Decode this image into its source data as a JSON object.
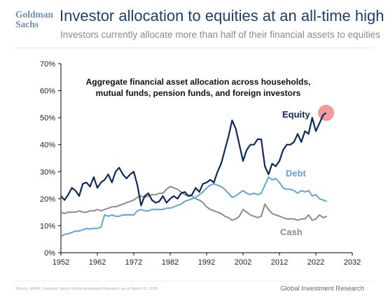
{
  "brand": {
    "line1": "Goldman",
    "line2": "Sachs"
  },
  "header": {
    "title": "Investor allocation to equities at an all-time high",
    "subtitle": "Investors currently allocate more than half of their financial assets to equities"
  },
  "footer": {
    "source": "Source: EPFR, Goldman Sachs Global Investment Research. As of March 13, 2025",
    "right": "Global Investment Research"
  },
  "colors": {
    "equity": "#0d2a5c",
    "debt": "#5fa6d9",
    "cash": "#8c8c8c",
    "highlight": "#f28b8b",
    "axis": "#000000"
  },
  "chart_data": {
    "type": "line",
    "title": "Aggregate financial asset allocation across households, mutual funds, pension funds, and foreign investors",
    "title_lines": [
      "Aggregate financial asset allocation across households,",
      "mutual funds, pension funds, and foreign investors"
    ],
    "xlabel": "",
    "ylabel": "",
    "xlim": [
      1952,
      2032
    ],
    "ylim": [
      0,
      70
    ],
    "x_ticks": [
      1952,
      1962,
      1972,
      1982,
      1992,
      2002,
      2012,
      2022,
      2032
    ],
    "y_ticks": [
      0,
      10,
      20,
      30,
      40,
      50,
      60,
      70
    ],
    "y_tick_labels": [
      "0%",
      "10%",
      "20%",
      "30%",
      "40%",
      "50%",
      "60%",
      "70%"
    ],
    "grid": false,
    "highlight_point": {
      "x": 2024.8,
      "y": 51.8
    },
    "series": [
      {
        "name": "Equity",
        "key": "equity",
        "points": [
          [
            1952,
            21
          ],
          [
            1953,
            19.5
          ],
          [
            1954,
            21.5
          ],
          [
            1955,
            24
          ],
          [
            1956,
            23
          ],
          [
            1957,
            21
          ],
          [
            1958,
            25.5
          ],
          [
            1959,
            26
          ],
          [
            1960,
            24.5
          ],
          [
            1961,
            28
          ],
          [
            1962,
            24
          ],
          [
            1963,
            26
          ],
          [
            1964,
            27
          ],
          [
            1965,
            29
          ],
          [
            1966,
            26
          ],
          [
            1967,
            30
          ],
          [
            1968,
            31.5
          ],
          [
            1969,
            29
          ],
          [
            1970,
            27.5
          ],
          [
            1971,
            29
          ],
          [
            1972,
            30
          ],
          [
            1973,
            25
          ],
          [
            1974,
            17.5
          ],
          [
            1975,
            21
          ],
          [
            1976,
            22
          ],
          [
            1977,
            19.5
          ],
          [
            1978,
            18.5
          ],
          [
            1979,
            19
          ],
          [
            1980,
            21
          ],
          [
            1981,
            18.5
          ],
          [
            1982,
            20
          ],
          [
            1983,
            21
          ],
          [
            1984,
            20
          ],
          [
            1985,
            22
          ],
          [
            1986,
            22.5
          ],
          [
            1987,
            21
          ],
          [
            1988,
            21.5
          ],
          [
            1989,
            24
          ],
          [
            1990,
            22.5
          ],
          [
            1991,
            25.5
          ],
          [
            1992,
            26
          ],
          [
            1993,
            27
          ],
          [
            1994,
            26
          ],
          [
            1995,
            30
          ],
          [
            1996,
            33
          ],
          [
            1997,
            38
          ],
          [
            1998,
            43
          ],
          [
            1999,
            49
          ],
          [
            2000,
            46
          ],
          [
            2001,
            40
          ],
          [
            2002,
            34
          ],
          [
            2003,
            38
          ],
          [
            2004,
            40
          ],
          [
            2005,
            40
          ],
          [
            2006,
            42
          ],
          [
            2007,
            42
          ],
          [
            2008,
            32
          ],
          [
            2009,
            29
          ],
          [
            2010,
            33
          ],
          [
            2011,
            32
          ],
          [
            2012,
            34
          ],
          [
            2013,
            38
          ],
          [
            2014,
            40
          ],
          [
            2015,
            40
          ],
          [
            2016,
            41
          ],
          [
            2017,
            44
          ],
          [
            2018,
            41
          ],
          [
            2019,
            45
          ],
          [
            2020,
            44
          ],
          [
            2021,
            50
          ],
          [
            2022,
            45
          ],
          [
            2023,
            48
          ],
          [
            2024,
            51
          ],
          [
            2024.8,
            51.8
          ]
        ]
      },
      {
        "name": "Debt",
        "key": "debt",
        "points": [
          [
            1952,
            6
          ],
          [
            1953,
            6.8
          ],
          [
            1954,
            7
          ],
          [
            1955,
            7.5
          ],
          [
            1956,
            8
          ],
          [
            1957,
            8
          ],
          [
            1958,
            8.5
          ],
          [
            1959,
            9
          ],
          [
            1960,
            8.8
          ],
          [
            1961,
            9
          ],
          [
            1962,
            9
          ],
          [
            1963,
            9.5
          ],
          [
            1964,
            14
          ],
          [
            1965,
            13.5
          ],
          [
            1966,
            14
          ],
          [
            1967,
            13.5
          ],
          [
            1968,
            13.5
          ],
          [
            1969,
            14
          ],
          [
            1970,
            14
          ],
          [
            1971,
            14
          ],
          [
            1972,
            14
          ],
          [
            1973,
            15.5
          ],
          [
            1974,
            16
          ],
          [
            1975,
            15.5
          ],
          [
            1976,
            15.5
          ],
          [
            1977,
            16
          ],
          [
            1978,
            16
          ],
          [
            1979,
            16
          ],
          [
            1980,
            16
          ],
          [
            1981,
            16.5
          ],
          [
            1982,
            16.5
          ],
          [
            1983,
            17
          ],
          [
            1984,
            17.5
          ],
          [
            1985,
            18
          ],
          [
            1986,
            19
          ],
          [
            1987,
            19.5
          ],
          [
            1988,
            20
          ],
          [
            1989,
            20.5
          ],
          [
            1990,
            21.5
          ],
          [
            1991,
            22.5
          ],
          [
            1992,
            24
          ],
          [
            1993,
            25
          ],
          [
            1994,
            25.5
          ],
          [
            1995,
            25
          ],
          [
            1996,
            24.5
          ],
          [
            1997,
            23.5
          ],
          [
            1998,
            22
          ],
          [
            1999,
            20.5
          ],
          [
            2000,
            21
          ],
          [
            2001,
            22
          ],
          [
            2002,
            23
          ],
          [
            2003,
            22
          ],
          [
            2004,
            21.5
          ],
          [
            2005,
            22
          ],
          [
            2006,
            21.5
          ],
          [
            2007,
            22
          ],
          [
            2008,
            25
          ],
          [
            2009,
            28
          ],
          [
            2010,
            27
          ],
          [
            2011,
            27.5
          ],
          [
            2012,
            26
          ],
          [
            2013,
            24
          ],
          [
            2014,
            23.5
          ],
          [
            2015,
            23.5
          ],
          [
            2016,
            23
          ],
          [
            2017,
            22
          ],
          [
            2018,
            23
          ],
          [
            2019,
            22.5
          ],
          [
            2020,
            23
          ],
          [
            2021,
            21
          ],
          [
            2022,
            21.5
          ],
          [
            2023,
            20
          ],
          [
            2024,
            19.5
          ],
          [
            2025,
            19
          ]
        ]
      },
      {
        "name": "Cash",
        "key": "cash",
        "points": [
          [
            1952,
            15
          ],
          [
            1953,
            14.5
          ],
          [
            1954,
            15
          ],
          [
            1955,
            15
          ],
          [
            1956,
            15
          ],
          [
            1957,
            15.5
          ],
          [
            1958,
            15
          ],
          [
            1959,
            15
          ],
          [
            1960,
            15.5
          ],
          [
            1961,
            15.5
          ],
          [
            1962,
            16
          ],
          [
            1963,
            15.5
          ],
          [
            1964,
            16
          ],
          [
            1965,
            16.5
          ],
          [
            1966,
            17
          ],
          [
            1967,
            17
          ],
          [
            1968,
            17.5
          ],
          [
            1969,
            18
          ],
          [
            1970,
            18.5
          ],
          [
            1971,
            19
          ],
          [
            1972,
            19.5
          ],
          [
            1973,
            20.5
          ],
          [
            1974,
            21
          ],
          [
            1975,
            20.5
          ],
          [
            1976,
            21
          ],
          [
            1977,
            21.5
          ],
          [
            1978,
            21.5
          ],
          [
            1979,
            22
          ],
          [
            1980,
            22
          ],
          [
            1981,
            23.5
          ],
          [
            1982,
            24.5
          ],
          [
            1983,
            24
          ],
          [
            1984,
            23.5
          ],
          [
            1985,
            22.5
          ],
          [
            1986,
            21.5
          ],
          [
            1987,
            21
          ],
          [
            1988,
            21
          ],
          [
            1989,
            20
          ],
          [
            1990,
            19.5
          ],
          [
            1991,
            18.5
          ],
          [
            1992,
            17
          ],
          [
            1993,
            16
          ],
          [
            1994,
            15.5
          ],
          [
            1995,
            15
          ],
          [
            1996,
            14.5
          ],
          [
            1997,
            13.5
          ],
          [
            1998,
            13
          ],
          [
            1999,
            12
          ],
          [
            2000,
            12.5
          ],
          [
            2001,
            13.5
          ],
          [
            2002,
            16
          ],
          [
            2003,
            15
          ],
          [
            2004,
            14
          ],
          [
            2005,
            13.5
          ],
          [
            2006,
            13
          ],
          [
            2007,
            13.5
          ],
          [
            2008,
            18
          ],
          [
            2009,
            16
          ],
          [
            2010,
            14.5
          ],
          [
            2011,
            14
          ],
          [
            2012,
            13.5
          ],
          [
            2013,
            13
          ],
          [
            2014,
            12.5
          ],
          [
            2015,
            12.5
          ],
          [
            2016,
            12.5
          ],
          [
            2017,
            12
          ],
          [
            2018,
            12.5
          ],
          [
            2019,
            12.5
          ],
          [
            2020,
            14
          ],
          [
            2021,
            12
          ],
          [
            2022,
            12.5
          ],
          [
            2023,
            14
          ],
          [
            2024,
            13
          ],
          [
            2025,
            13.5
          ]
        ]
      }
    ]
  }
}
